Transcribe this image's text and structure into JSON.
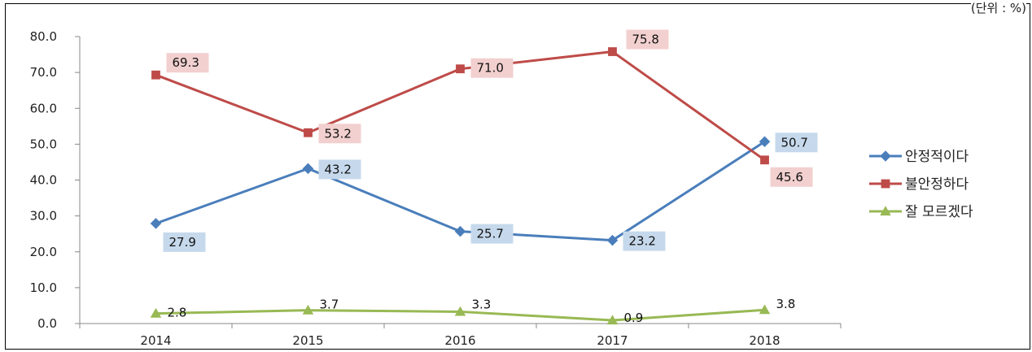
{
  "chart_data": {
    "type": "line",
    "unit_note": "(단위 : %)",
    "categories": [
      "2014",
      "2015",
      "2016",
      "2017",
      "2018"
    ],
    "ylim": [
      0,
      80
    ],
    "yticks": [
      "0.0",
      "10.0",
      "20.0",
      "30.0",
      "40.0",
      "50.0",
      "60.0",
      "70.0",
      "80.0"
    ],
    "legend_position": "right",
    "series": [
      {
        "name": "안정적이다",
        "values": [
          27.9,
          43.2,
          25.7,
          23.2,
          50.7
        ],
        "labels": [
          "27.9",
          "43.2",
          "25.7",
          "23.2",
          "50.7"
        ],
        "color": "#4a7ebb",
        "label_bg": "#c6d9ec",
        "marker": "diamond"
      },
      {
        "name": "불안정하다",
        "values": [
          69.3,
          53.2,
          71.0,
          75.8,
          45.6
        ],
        "labels": [
          "69.3",
          "53.2",
          "71.0",
          "75.8",
          "45.6"
        ],
        "color": "#be4b48",
        "label_bg": "#f2d0cf",
        "marker": "square"
      },
      {
        "name": "잘 모르겠다",
        "values": [
          2.8,
          3.7,
          3.3,
          0.9,
          3.8
        ],
        "labels": [
          "2.8",
          "3.7",
          "3.3",
          "0.9",
          "3.8"
        ],
        "color": "#98b954",
        "label_bg": "",
        "marker": "triangle"
      }
    ]
  }
}
